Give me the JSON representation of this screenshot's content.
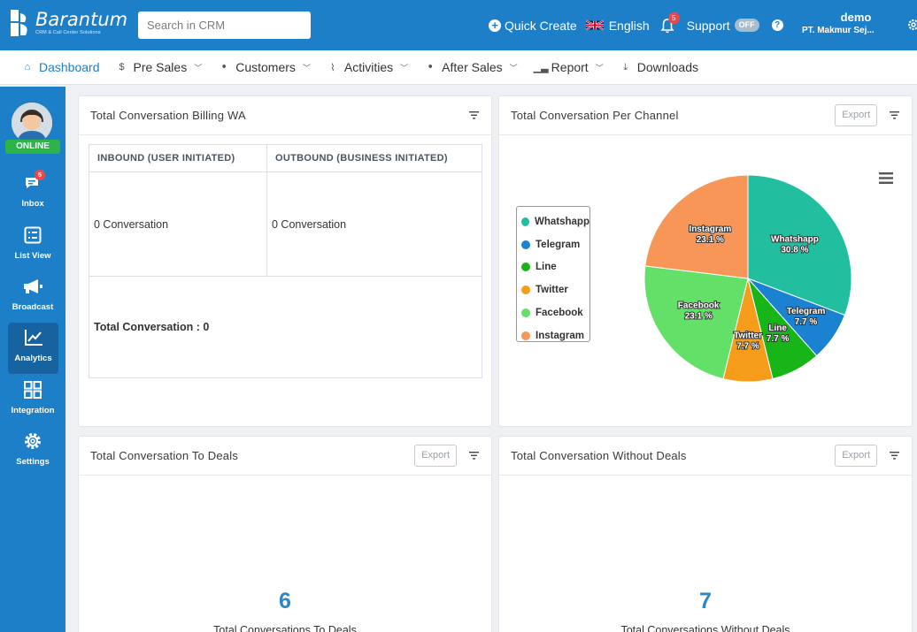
{
  "brand": {
    "name": "Barantum",
    "tagline": "CRM & Call Center Solutions"
  },
  "search": {
    "placeholder": "Search in CRM"
  },
  "topbar": {
    "quick_create": "Quick Create",
    "language": "English",
    "notifications_count": "5",
    "support_label": "Support",
    "support_toggle": "OFF",
    "user_name": "demo",
    "user_company": "PT. Makmur Sej..."
  },
  "nav": {
    "items": [
      {
        "label": "Dashboard",
        "icon": "home-icon",
        "active": true
      },
      {
        "label": "Pre Sales",
        "icon": "dollar-icon",
        "dropdown": true
      },
      {
        "label": "Customers",
        "icon": "users-icon",
        "dropdown": true
      },
      {
        "label": "Activities",
        "icon": "activity-icon",
        "dropdown": true
      },
      {
        "label": "After Sales",
        "icon": "users-icon",
        "dropdown": true
      },
      {
        "label": "Report",
        "icon": "bar-chart-icon",
        "dropdown": true
      },
      {
        "label": "Downloads",
        "icon": "download-icon"
      }
    ]
  },
  "sidebar": {
    "status": "ONLINE",
    "items": [
      {
        "label": "Inbox",
        "badge": "5"
      },
      {
        "label": "List View"
      },
      {
        "label": "Broadcast"
      },
      {
        "label": "Analytics",
        "active": true
      },
      {
        "label": "Integration"
      },
      {
        "label": "Settings"
      }
    ]
  },
  "cards": {
    "billing": {
      "title": "Total Conversation Billing WA",
      "col_inbound": "INBOUND (USER INITIATED)",
      "col_outbound": "OUTBOUND (BUSINESS INITIATED)",
      "inbound_value": "0 Conversation",
      "outbound_value": "0 Conversation",
      "total": "Total Conversation : 0"
    },
    "channel": {
      "title": "Total Conversation Per Channel",
      "export": "Export"
    },
    "to_deals": {
      "title": "Total Conversation To Deals",
      "export": "Export",
      "value": "6",
      "label": "Total Conversations To Deals"
    },
    "without_deals": {
      "title": "Total Conversation Without Deals",
      "export": "Export",
      "value": "7",
      "label": "Total Conversations Without Deals"
    }
  },
  "chart_data": {
    "type": "pie",
    "categories": [
      "Whatshapp",
      "Telegram",
      "Line",
      "Twitter",
      "Facebook",
      "Instagram"
    ],
    "values": [
      30.8,
      7.7,
      7.7,
      7.7,
      23.1,
      23.1
    ],
    "labels": [
      "30.8 %",
      "7.7 %",
      "7.7 %",
      "7.7 %",
      "23.1 %",
      "23.1 %"
    ],
    "colors": [
      "#21bfa0",
      "#1b82d1",
      "#17b517",
      "#f59d1a",
      "#62e068",
      "#f89657"
    ],
    "legend": "left"
  }
}
